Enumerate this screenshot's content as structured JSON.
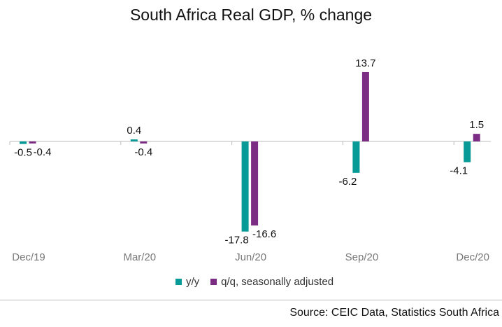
{
  "chart_data": {
    "type": "bar",
    "title": "South Africa Real GDP, % change",
    "categories": [
      "Dec/19",
      "Mar/20",
      "Jun/20",
      "Sep/20",
      "Dec/20"
    ],
    "series": [
      {
        "name": "y/y",
        "color": "#079A97",
        "values": [
          -0.5,
          0.4,
          -17.8,
          -6.2,
          -4.1
        ]
      },
      {
        "name": "q/q, seasonally adjusted",
        "color": "#7B2C83",
        "values": [
          -0.4,
          -0.4,
          -16.6,
          13.7,
          1.5
        ]
      }
    ],
    "xlabel": "",
    "ylabel": "",
    "ylim": [
      -19,
      20
    ],
    "grid": false,
    "data_labels": true,
    "legend_position": "bottom",
    "source": "Source: CEIC Data, Statistics South Africa"
  }
}
